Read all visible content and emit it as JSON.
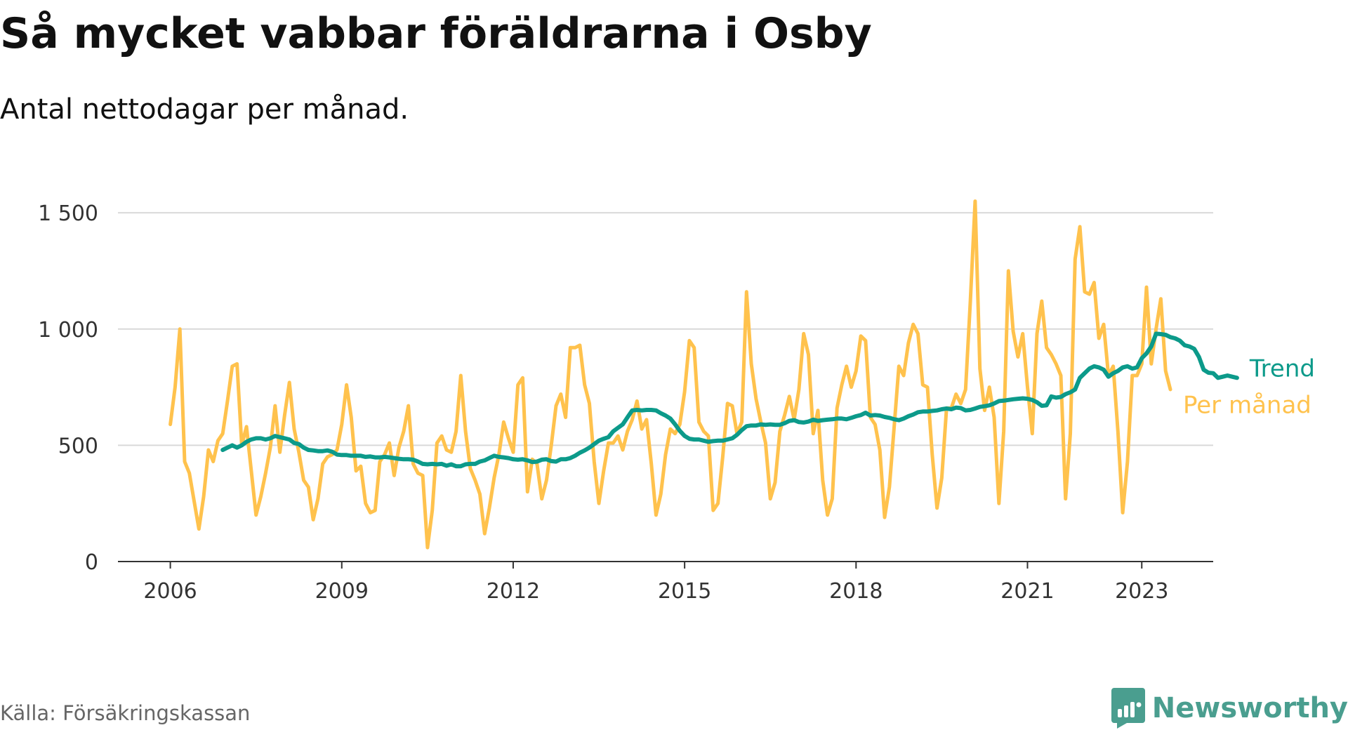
{
  "title": "Så mycket vabbar föräldrarna i Osby",
  "subtitle": "Antal nettodagar per månad.",
  "source": "Källa: Försäkringskassan",
  "brand": {
    "name": "Newsworthy",
    "icon": "newsworthy-logo-icon",
    "color": "#4a9e8f"
  },
  "chart_data": {
    "type": "line",
    "title": "Så mycket vabbar föräldrarna i Osby",
    "subtitle": "Antal nettodagar per månad.",
    "x_axis": {
      "type": "date",
      "range": [
        "2005-02",
        "2024-04"
      ],
      "ticks": [
        {
          "date": "2006-01",
          "label": "2006"
        },
        {
          "date": "2009-01",
          "label": "2009"
        },
        {
          "date": "2012-01",
          "label": "2012"
        },
        {
          "date": "2015-01",
          "label": "2015"
        },
        {
          "date": "2018-01",
          "label": "2018"
        },
        {
          "date": "2021-01",
          "label": "2021"
        },
        {
          "date": "2023-01",
          "label": "2023"
        }
      ]
    },
    "y_axis": {
      "range": [
        0,
        1600
      ],
      "ticks": [
        {
          "value": 0,
          "label": "0"
        },
        {
          "value": 500,
          "label": "500"
        },
        {
          "value": 1000,
          "label": "1 000"
        },
        {
          "value": 1500,
          "label": "1 500"
        }
      ]
    },
    "grid": true,
    "legend": "direct labels at line ends, right",
    "series": [
      {
        "name": "Per månad",
        "color": "#ffc24d",
        "start": "2006-01",
        "values": [
          590,
          750,
          1000,
          430,
          380,
          260,
          140,
          280,
          480,
          430,
          520,
          550,
          690,
          840,
          850,
          500,
          580,
          390,
          200,
          280,
          380,
          490,
          670,
          470,
          630,
          770,
          570,
          470,
          350,
          320,
          180,
          270,
          420,
          450,
          460,
          480,
          590,
          760,
          620,
          390,
          410,
          250,
          210,
          220,
          430,
          460,
          510,
          370,
          490,
          560,
          670,
          420,
          380,
          370,
          60,
          220,
          510,
          540,
          480,
          470,
          560,
          800,
          560,
          400,
          350,
          290,
          120,
          230,
          360,
          460,
          600,
          530,
          470,
          760,
          790,
          300,
          440,
          420,
          270,
          350,
          500,
          670,
          720,
          620,
          920,
          920,
          930,
          760,
          680,
          430,
          250,
          390,
          510,
          510,
          540,
          480,
          560,
          610,
          690,
          570,
          610,
          420,
          200,
          290,
          460,
          570,
          550,
          590,
          730,
          950,
          920,
          600,
          560,
          540,
          220,
          250,
          450,
          680,
          670,
          550,
          600,
          1160,
          850,
          700,
          600,
          510,
          270,
          340,
          560,
          630,
          710,
          610,
          740,
          980,
          890,
          550,
          650,
          350,
          200,
          270,
          660,
          760,
          840,
          750,
          820,
          970,
          950,
          620,
          590,
          480,
          190,
          320,
          580,
          840,
          800,
          940,
          1020,
          980,
          760,
          750,
          460,
          230,
          360,
          660,
          660,
          720,
          680,
          740,
          1120,
          1550,
          830,
          650,
          750,
          620,
          250,
          560,
          1250,
          990,
          880,
          980,
          750,
          550,
          980,
          1120,
          920,
          890,
          850,
          800,
          270,
          550,
          1300,
          1440,
          1160,
          1150,
          1200,
          960,
          1020,
          800,
          840,
          560,
          210,
          430,
          800,
          800,
          850,
          1180,
          850,
          1000,
          1130,
          820,
          740
        ]
      },
      {
        "name": "Trend",
        "color": "#0c9a8a",
        "start": "2006-12",
        "values": [
          480,
          490,
          500,
          490,
          500,
          515,
          525,
          530,
          530,
          525,
          530,
          540,
          535,
          530,
          525,
          510,
          505,
          490,
          480,
          478,
          475,
          475,
          478,
          472,
          460,
          458,
          458,
          455,
          455,
          455,
          450,
          452,
          448,
          448,
          450,
          448,
          445,
          442,
          440,
          440,
          438,
          430,
          420,
          418,
          420,
          418,
          420,
          412,
          418,
          410,
          410,
          418,
          420,
          420,
          430,
          435,
          445,
          455,
          450,
          448,
          445,
          440,
          438,
          440,
          435,
          428,
          430,
          438,
          440,
          432,
          430,
          440,
          440,
          445,
          455,
          468,
          478,
          490,
          505,
          520,
          528,
          535,
          560,
          575,
          590,
          620,
          650,
          652,
          650,
          652,
          652,
          650,
          638,
          628,
          615,
          590,
          562,
          540,
          528,
          525,
          525,
          520,
          515,
          518,
          520,
          520,
          525,
          530,
          545,
          565,
          582,
          585,
          585,
          590,
          588,
          590,
          588,
          588,
          595,
          605,
          608,
          600,
          598,
          602,
          610,
          605,
          608,
          610,
          612,
          615,
          615,
          612,
          618,
          625,
          630,
          640,
          628,
          630,
          628,
          622,
          618,
          612,
          608,
          615,
          625,
          632,
          642,
          645,
          645,
          648,
          650,
          655,
          658,
          655,
          662,
          660,
          650,
          652,
          658,
          665,
          668,
          672,
          680,
          690,
          692,
          695,
          698,
          700,
          702,
          700,
          695,
          685,
          670,
          672,
          710,
          705,
          708,
          720,
          728,
          740,
          790,
          810,
          830,
          840,
          835,
          825,
          795,
          810,
          820,
          835,
          840,
          830,
          835,
          875,
          895,
          925,
          980,
          978,
          975,
          965,
          960,
          950,
          930,
          925,
          915,
          880,
          825,
          812,
          810,
          790,
          795,
          800,
          795,
          790
        ]
      }
    ]
  }
}
